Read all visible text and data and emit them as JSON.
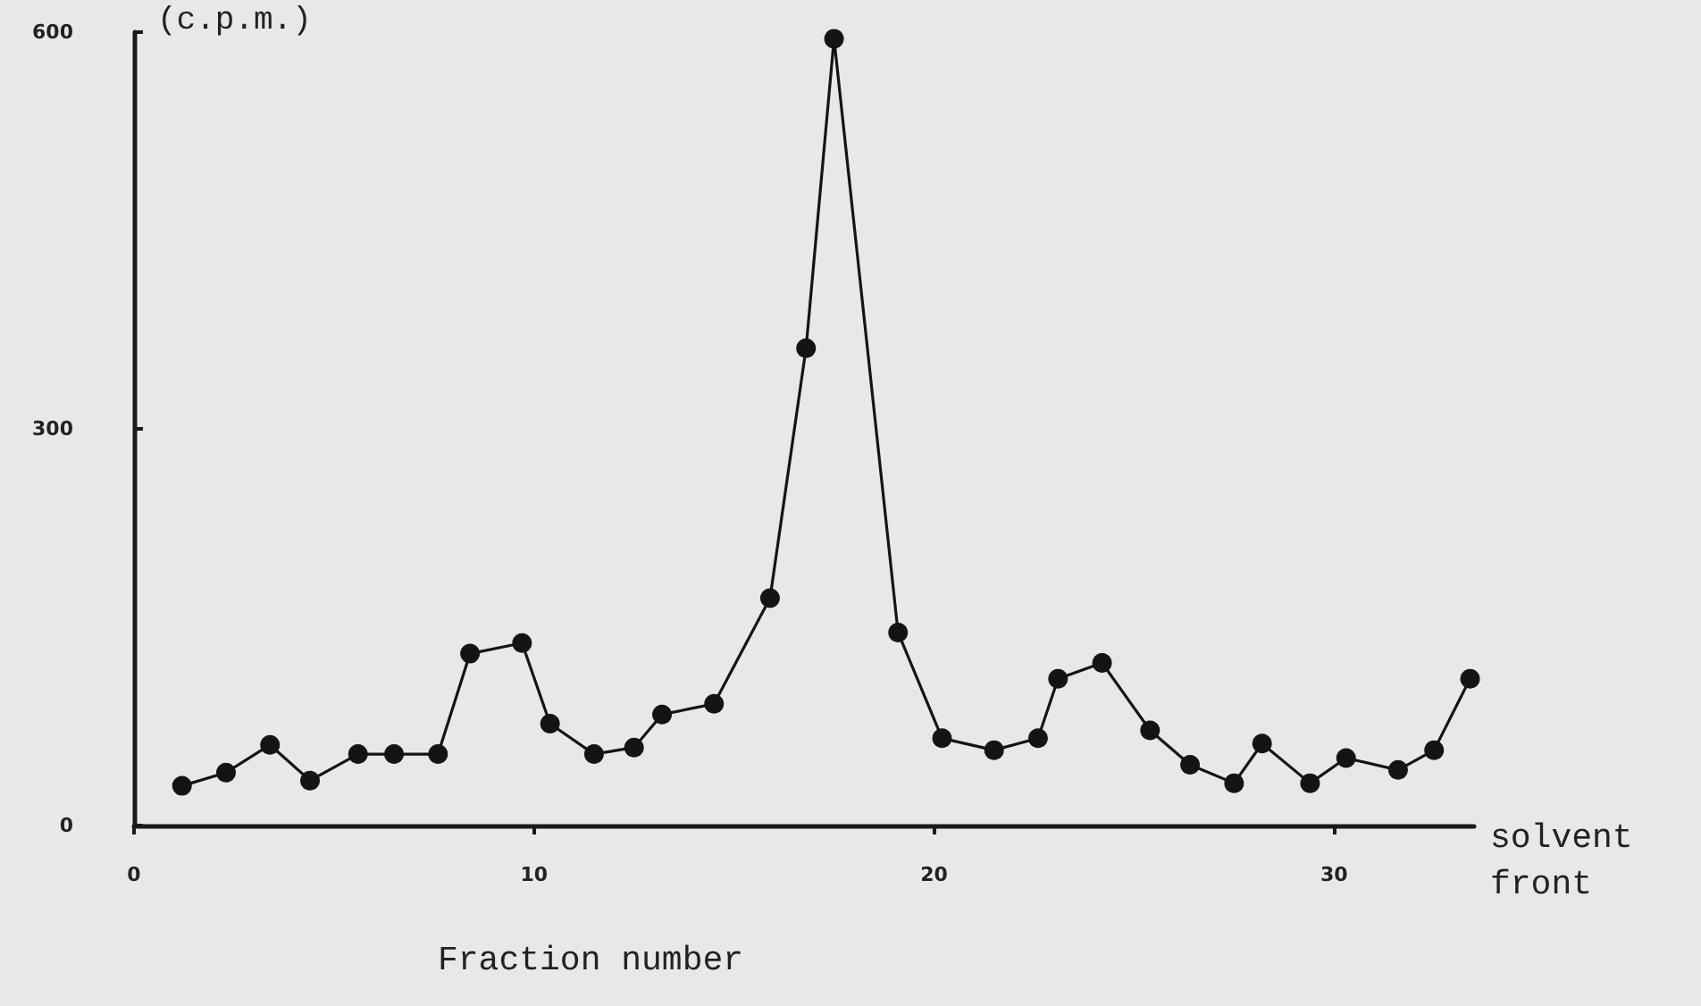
{
  "chart_data": {
    "type": "line",
    "xlabel": "Fraction number",
    "ylabel": "(c.p.m.)",
    "annotations": [
      "solvent front"
    ],
    "x": [
      1.2,
      2.3,
      3.4,
      4.4,
      5.6,
      6.5,
      7.6,
      8.4,
      9.7,
      10.4,
      11.5,
      12.5,
      13.2,
      14.5,
      15.9,
      16.8,
      17.5,
      19.1,
      20.2,
      21.5,
      22.6,
      23.1,
      24.2,
      25.4,
      26.4,
      27.5,
      28.2,
      29.4,
      30.3,
      31.6,
      32.5,
      33.4
    ],
    "series": [
      {
        "color": "#141414",
        "values": [
          30,
          40,
          61,
          34,
          54,
          54,
          54,
          130,
          138,
          77,
          54,
          59,
          84,
          92,
          172,
          361,
          595,
          146,
          66,
          57,
          66,
          111,
          123,
          72,
          46,
          32,
          62,
          32,
          51,
          42,
          57,
          111
        ]
      }
    ],
    "xlim": [
      0,
      33.5
    ],
    "xticks": [
      0,
      10,
      20,
      30
    ],
    "ylim": [
      0,
      600
    ],
    "yticks": [
      0,
      300,
      600
    ],
    "grid": false,
    "marker": "circle",
    "line_style": "solid"
  }
}
